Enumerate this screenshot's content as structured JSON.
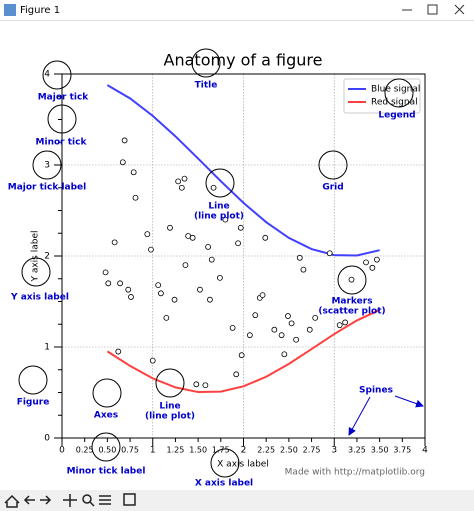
{
  "window": {
    "title": "Figure 1"
  },
  "chart_data": {
    "type": "line",
    "title": "Anatomy of a figure",
    "xlabel": "X axis label",
    "ylabel": "Y axis label",
    "footer": "Made with http://matplotlib.org",
    "xlim": [
      0,
      4
    ],
    "ylim": [
      0,
      4
    ],
    "xticks": [
      0,
      1,
      2,
      3,
      4
    ],
    "xminorticks": [
      0.25,
      {
        "value": 0.5,
        "label": "0.50"
      },
      0.75,
      1.25,
      {
        "value": 1.5,
        "label": "1.50"
      },
      1.75,
      2.25,
      {
        "value": 2.5,
        "label": "2.50"
      },
      2.75,
      3.25,
      {
        "value": 3.5,
        "label": "3.50"
      },
      3.75
    ],
    "yticks": [
      0,
      1,
      2,
      3,
      4
    ],
    "yminorticks": [
      0.25,
      0.5,
      0.75,
      1.25,
      1.5,
      1.75,
      2.25,
      2.5,
      2.75,
      3.25,
      3.5,
      3.75
    ],
    "grid": true,
    "legend": "upper right",
    "series": [
      {
        "name": "Blue signal",
        "type": "line",
        "color": "#4040ff",
        "x": [
          0.5,
          0.75,
          1.0,
          1.25,
          1.5,
          1.75,
          2.0,
          2.25,
          2.5,
          2.75,
          3.0,
          3.25,
          3.5
        ],
        "values": [
          3.878,
          3.732,
          3.54,
          3.315,
          3.071,
          2.822,
          2.584,
          2.372,
          2.199,
          2.076,
          2.01,
          2.006,
          2.064
        ]
      },
      {
        "name": "Red signal",
        "type": "line",
        "color": "#ff4040",
        "x": [
          0.5,
          0.75,
          1.0,
          1.25,
          1.5,
          1.75,
          2.0,
          2.25,
          2.5,
          2.75,
          3.0,
          3.25,
          3.5
        ],
        "values": [
          0.952,
          0.792,
          0.655,
          0.556,
          0.505,
          0.51,
          0.568,
          0.673,
          0.815,
          0.977,
          1.142,
          1.292,
          1.407
        ]
      },
      {
        "type": "scatter",
        "color": "#000000",
        "x": [
          0.69,
          0.67,
          0.79,
          0.81,
          0.58,
          0.48,
          0.51,
          0.64,
          0.73,
          0.76,
          0.62,
          0.94,
          0.98,
          1.0,
          1.06,
          1.09,
          1.15,
          1.19,
          1.24,
          1.28,
          1.32,
          1.35,
          1.39,
          1.36,
          1.44,
          1.48,
          1.58,
          1.52,
          1.61,
          1.63,
          1.65,
          1.67,
          1.74,
          1.8,
          1.88,
          1.92,
          1.94,
          1.97,
          1.98,
          2.07,
          2.13,
          2.18,
          2.24,
          2.21,
          2.34,
          2.42,
          2.45,
          2.49,
          2.53,
          2.58,
          2.62,
          2.66,
          2.73,
          2.79,
          2.95,
          3.06,
          3.12,
          3.19,
          3.35,
          3.42,
          3.47
        ],
        "values": [
          3.27,
          3.03,
          2.92,
          2.64,
          2.15,
          1.82,
          1.7,
          1.7,
          1.63,
          1.55,
          0.95,
          2.24,
          2.07,
          0.85,
          1.68,
          1.59,
          1.32,
          2.31,
          1.52,
          2.82,
          2.75,
          2.85,
          2.22,
          1.9,
          2.2,
          0.59,
          0.58,
          1.63,
          2.1,
          1.52,
          1.96,
          2.75,
          1.76,
          2.4,
          1.21,
          0.7,
          2.14,
          2.31,
          0.91,
          1.13,
          1.35,
          1.54,
          2.2,
          1.57,
          1.19,
          1.13,
          0.92,
          1.34,
          1.26,
          1.08,
          1.98,
          1.85,
          1.19,
          1.32,
          2.03,
          1.24,
          1.27,
          1.74,
          1.93,
          1.87,
          1.96
        ]
      }
    ],
    "annotations": [
      {
        "lines": [
          "Major tick"
        ]
      },
      {
        "lines": [
          "Minor tick"
        ]
      },
      {
        "lines": [
          "Major tick label"
        ]
      },
      {
        "lines": [
          "Y axis label"
        ]
      },
      {
        "lines": [
          "Figure"
        ]
      },
      {
        "lines": [
          "Axes"
        ]
      },
      {
        "lines": [
          "Minor tick label"
        ]
      },
      {
        "lines": [
          "X axis label"
        ]
      },
      {
        "lines": [
          "Line",
          "(line plot)"
        ]
      },
      {
        "lines": [
          "Line",
          "(line plot)"
        ]
      },
      {
        "lines": [
          "Markers",
          "(scatter plot)"
        ]
      },
      {
        "lines": [
          "Grid"
        ]
      },
      {
        "lines": [
          "Legend"
        ]
      },
      {
        "lines": [
          "Title"
        ]
      },
      {
        "lines": [
          "Spines"
        ]
      }
    ]
  }
}
